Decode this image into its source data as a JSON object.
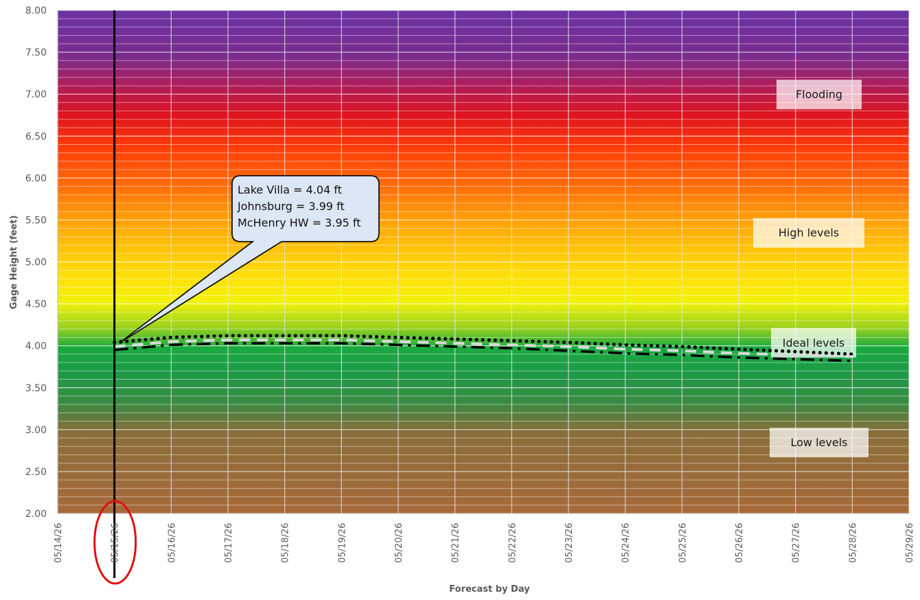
{
  "chart_data": {
    "type": "line",
    "xlabel": "Forecast by Day",
    "ylabel": "Gage Height (feet)",
    "ylim": [
      2.0,
      8.0
    ],
    "y_ticks": [
      "2.00",
      "2.50",
      "3.00",
      "3.50",
      "4.00",
      "4.50",
      "5.00",
      "5.50",
      "6.00",
      "6.50",
      "7.00",
      "7.50",
      "8.00"
    ],
    "categories": [
      "05/14/26",
      "05/15/26",
      "05/16/26",
      "05/17/26",
      "05/18/26",
      "05/19/26",
      "05/20/26",
      "05/21/26",
      "05/22/26",
      "05/23/26",
      "05/24/26",
      "05/25/26",
      "05/26/26",
      "05/27/26",
      "05/28/26",
      "05/29/26"
    ],
    "current_day": "05/15/26",
    "grid": true,
    "bands": [
      {
        "label": "Flooding",
        "y": 7.0
      },
      {
        "label": "High levels",
        "y": 5.35
      },
      {
        "label": "Ideal levels",
        "y": 4.04
      },
      {
        "label": "Low levels",
        "y": 2.85
      }
    ],
    "series": [
      {
        "style": "dotted",
        "color": "#000000",
        "x": [
          "05/15/26",
          "05/16/26",
          "05/17/26",
          "05/18/26",
          "05/19/26",
          "05/20/26",
          "05/21/26",
          "05/22/26",
          "05/23/26",
          "05/24/26",
          "05/25/26",
          "05/26/26",
          "05/27/26",
          "05/28/26"
        ],
        "values": [
          4.04,
          4.1,
          4.12,
          4.12,
          4.12,
          4.1,
          4.08,
          4.06,
          4.04,
          4.01,
          3.99,
          3.96,
          3.93,
          3.9
        ]
      },
      {
        "style": "dashed",
        "color": "#d9d9d9",
        "x": [
          "05/15/26",
          "05/16/26",
          "05/17/26",
          "05/18/26",
          "05/19/26",
          "05/20/26",
          "05/21/26",
          "05/22/26",
          "05/23/26",
          "05/24/26",
          "05/25/26",
          "05/26/26",
          "05/27/26",
          "05/28/26"
        ],
        "values": [
          3.99,
          4.05,
          4.07,
          4.07,
          4.07,
          4.05,
          4.03,
          4.01,
          3.99,
          3.96,
          3.94,
          3.91,
          3.89,
          3.87
        ]
      },
      {
        "style": "dash-dot",
        "color": "#000000",
        "x": [
          "05/15/26",
          "05/16/26",
          "05/17/26",
          "05/18/26",
          "05/19/26",
          "05/20/26",
          "05/21/26",
          "05/22/26",
          "05/23/26",
          "05/24/26",
          "05/25/26",
          "05/26/26",
          "05/27/26",
          "05/28/26"
        ],
        "values": [
          3.95,
          4.01,
          4.03,
          4.03,
          4.03,
          4.01,
          3.99,
          3.97,
          3.94,
          3.91,
          3.89,
          3.86,
          3.84,
          3.82
        ]
      }
    ],
    "annotation": {
      "lines": [
        "Lake Villa = 4.04 ft",
        "Johnsburg  = 3.99 ft",
        "McHenry HW = 3.95 ft"
      ],
      "points_to": "05/15/26"
    }
  }
}
